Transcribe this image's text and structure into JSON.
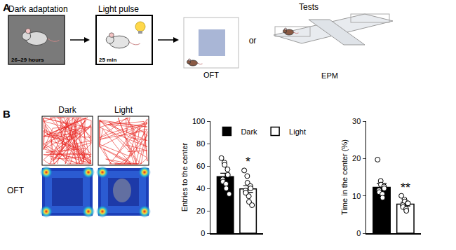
{
  "panels": {
    "A": {
      "label": "A",
      "steps": [
        {
          "title": "Dark adaptation",
          "duration": "26–29 hours"
        },
        {
          "title": "Light pulse",
          "duration": "25 min"
        },
        {
          "title": "Tests",
          "options": [
            "OFT",
            "EPM"
          ],
          "joiner": "or"
        }
      ]
    },
    "B": {
      "label": "B",
      "columns": [
        "Dark",
        "Light"
      ],
      "row_label": "OFT"
    }
  },
  "chart_data": [
    {
      "type": "bar",
      "y_label": "Entries to the center",
      "categories": [
        "Dark",
        "Light"
      ],
      "values": [
        50.5,
        39.5
      ],
      "colors": [
        "#000000",
        "#ffffff"
      ],
      "error": [
        3.0,
        3.0
      ],
      "points": [
        [
          67,
          63,
          61,
          57,
          52,
          48,
          46,
          44,
          40,
          35
        ],
        [
          56,
          51,
          45,
          42,
          40,
          38,
          36,
          33,
          28,
          25
        ]
      ],
      "marker": "circle-open",
      "ylim": [
        0,
        100
      ],
      "yticks": [
        0,
        20,
        40,
        60,
        80,
        100
      ],
      "annotations": [
        {
          "category": "Light",
          "text": "*"
        }
      ],
      "legend": "top left",
      "tick_labels": "y"
    },
    {
      "type": "bar",
      "y_label": "Time in the center (%)",
      "categories": [
        "Dark",
        "Light"
      ],
      "values": [
        12.3,
        7.8
      ],
      "colors": [
        "#000000",
        "#ffffff"
      ],
      "error": [
        1.0,
        0.5
      ],
      "points": [
        [
          19.7,
          14,
          13,
          12.5,
          12,
          11.5,
          11,
          10.5,
          9.5
        ],
        [
          10,
          9,
          8.5,
          8,
          8,
          7.5,
          7,
          6.5,
          6
        ]
      ],
      "marker": "circle-open",
      "ylim": [
        0,
        30
      ],
      "yticks": [
        0,
        10,
        20,
        30
      ],
      "annotations": [
        {
          "category": "Light",
          "text": "**"
        }
      ],
      "tick_labels": "y"
    }
  ]
}
